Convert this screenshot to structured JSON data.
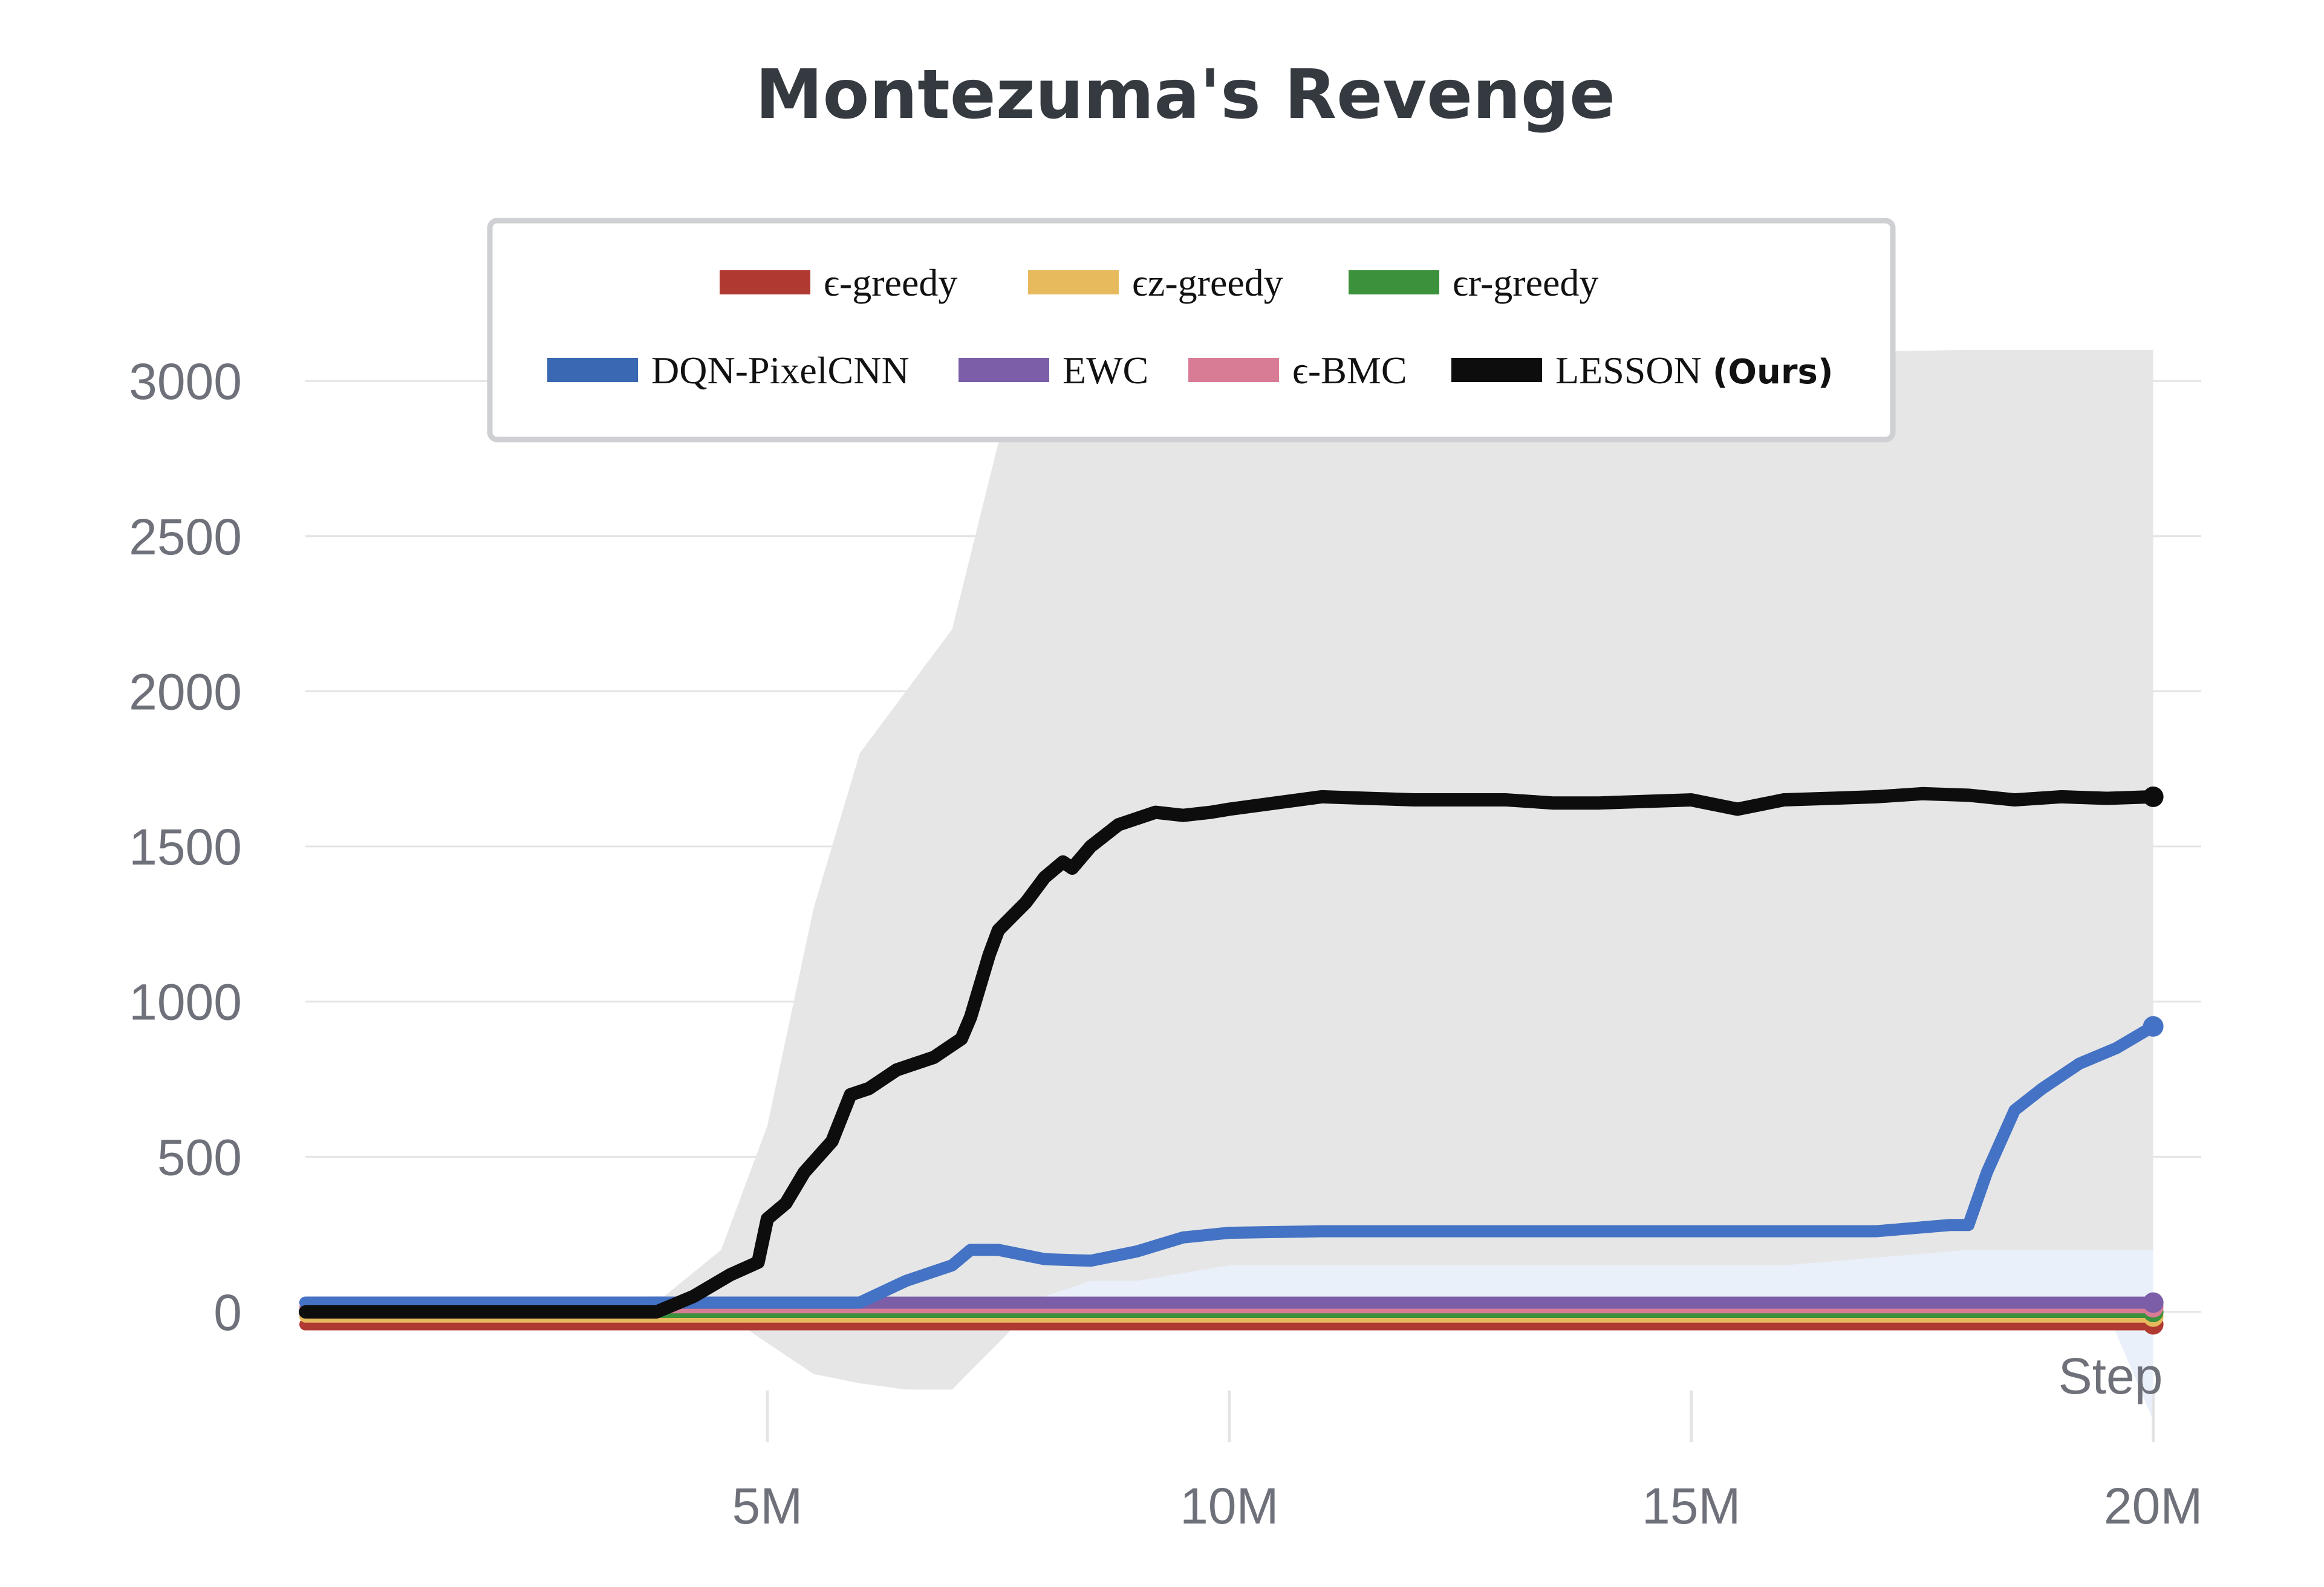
{
  "chart_data": {
    "type": "line",
    "title": "Montezuma's Revenge",
    "xlabel": "Step",
    "ylabel": "",
    "xlim": [
      0,
      20500000
    ],
    "ylim": [
      -450,
      3100
    ],
    "x_ticks": [
      {
        "value": 5000000,
        "label": "5M"
      },
      {
        "value": 10000000,
        "label": "10M"
      },
      {
        "value": 15000000,
        "label": "15M"
      },
      {
        "value": 20000000,
        "label": "20M"
      }
    ],
    "y_ticks": [
      0,
      500,
      1000,
      1500,
      2000,
      2500,
      3000
    ],
    "grid": true,
    "legend_position": "top-center",
    "series": [
      {
        "name": "ϵ-greedy",
        "color": "#b03a32",
        "x": [
          0,
          20000000
        ],
        "y": [
          -40,
          -40
        ]
      },
      {
        "name": "ϵz-greedy",
        "color": "#e8ba5e",
        "x": [
          0,
          20000000
        ],
        "y": [
          -15,
          -15
        ]
      },
      {
        "name": "ϵr-greedy",
        "color": "#3b913c",
        "x": [
          0,
          20000000
        ],
        "y": [
          0,
          0
        ]
      },
      {
        "name": "DQN-PixelCNN",
        "color": "#4472c4",
        "x": [
          0,
          6000000,
          6500000,
          7000000,
          7200000,
          7500000,
          8000000,
          8500000,
          9000000,
          9500000,
          10000000,
          11000000,
          15000000,
          17000000,
          17800000,
          18000000,
          18200000,
          18500000,
          18800000,
          19200000,
          19600000,
          20000000
        ],
        "y": [
          30,
          30,
          100,
          150,
          200,
          200,
          170,
          165,
          195,
          240,
          255,
          260,
          260,
          260,
          280,
          280,
          450,
          650,
          720,
          800,
          850,
          920
        ],
        "band": {
          "x": [
            0,
            5500000,
            7000000,
            8000000,
            9000000,
            10000000,
            12000000,
            17500000,
            18000000,
            18500000,
            19000000,
            19500000,
            20000000
          ],
          "upper": [
            30,
            60,
            400,
            430,
            450,
            490,
            500,
            500,
            520,
            1500,
            1900,
            2050,
            2200
          ],
          "lower": [
            30,
            30,
            30,
            30,
            30,
            30,
            30,
            30,
            30,
            30,
            30,
            0,
            -350
          ]
        }
      },
      {
        "name": "EWC",
        "color": "#7b5ea7",
        "x": [
          0,
          20000000
        ],
        "y": [
          30,
          30
        ]
      },
      {
        "name": "ϵ-BMC",
        "color": "#d87c96",
        "x": [
          0,
          20000000
        ],
        "y": [
          15,
          15
        ]
      },
      {
        "name": "LESSON",
        "color": "#0d0d0d",
        "x": [
          0,
          3800000,
          4200000,
          4600000,
          4900000,
          5000000,
          5200000,
          5400000,
          5700000,
          5900000,
          6100000,
          6400000,
          6600000,
          6800000,
          7100000,
          7200000,
          7400000,
          7500000,
          7800000,
          8000000,
          8200000,
          8300000,
          8500000,
          8800000,
          9200000,
          9500000,
          9800000,
          10000000,
          10500000,
          11000000,
          12000000,
          13000000,
          13500000,
          14000000,
          15000000,
          15500000,
          16000000,
          17000000,
          17500000,
          18000000,
          18500000,
          19000000,
          19500000,
          20000000
        ],
        "y": [
          0,
          0,
          50,
          120,
          160,
          300,
          350,
          450,
          550,
          700,
          720,
          780,
          800,
          820,
          880,
          950,
          1150,
          1230,
          1320,
          1400,
          1450,
          1430,
          1500,
          1570,
          1610,
          1600,
          1610,
          1620,
          1640,
          1660,
          1650,
          1650,
          1640,
          1640,
          1650,
          1620,
          1650,
          1660,
          1670,
          1665,
          1650,
          1660,
          1655,
          1660
        ],
        "band": {
          "x": [
            0,
            3800000,
            4500000,
            5000000,
            5500000,
            6000000,
            6500000,
            7000000,
            7500000,
            8000000,
            8500000,
            9000000,
            10000000,
            12000000,
            14000000,
            16000000,
            18000000,
            20000000
          ],
          "upper": [
            30,
            30,
            200,
            600,
            1300,
            1800,
            2000,
            2200,
            2800,
            2900,
            3000,
            3050,
            3080,
            3090,
            3090,
            3090,
            3100,
            3100
          ],
          "lower": [
            0,
            0,
            0,
            -100,
            -200,
            -230,
            -250,
            -250,
            -100,
            50,
            100,
            100,
            150,
            150,
            150,
            150,
            200,
            200
          ]
        }
      }
    ],
    "legend": {
      "rows": [
        [
          {
            "label": "ϵ-greedy",
            "color": "#b03a32"
          },
          {
            "label": "ϵz-greedy",
            "color": "#e8ba5e"
          },
          {
            "label": "ϵr-greedy",
            "color": "#3b913c"
          }
        ],
        [
          {
            "label": "DQN-PixelCNN",
            "color": "#3a68b3"
          },
          {
            "label": "EWC",
            "color": "#7b5ea7"
          },
          {
            "label": "ϵ-BMC",
            "color": "#d87c96"
          },
          {
            "label": "LESSON",
            "suffix": "(Ours)",
            "color": "#0d0d0d"
          }
        ]
      ]
    }
  }
}
